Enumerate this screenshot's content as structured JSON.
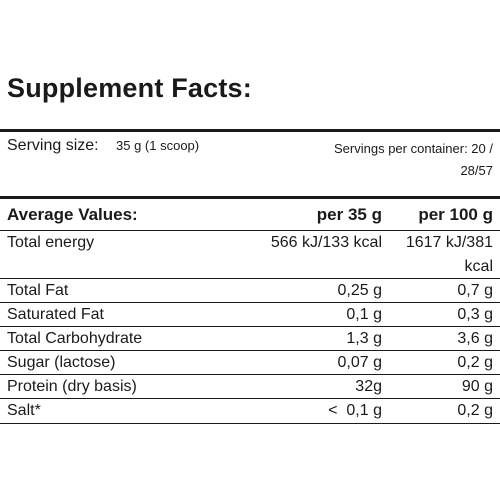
{
  "title": "Supplement Facts:",
  "serving": {
    "label": "Serving size:",
    "value": "35 g (1 scoop)",
    "per_container": "Servings per container: 20 / 28/57"
  },
  "table": {
    "headers": [
      "Average Values:",
      "per 35 g",
      "per 100 g"
    ],
    "rows": [
      {
        "name": "Total energy",
        "per_serving": "566 kJ/133 kcal",
        "per_100g": "1617 kJ/381 kcal"
      },
      {
        "name": "Total Fat",
        "per_serving": "0,25 g",
        "per_100g": "0,7 g"
      },
      {
        "name": "Saturated Fat",
        "per_serving": "0,1 g",
        "per_100g": "0,3 g"
      },
      {
        "name": "Total Carbohydrate",
        "per_serving": "1,3 g",
        "per_100g": "3,6 g"
      },
      {
        "name": "Sugar (lactose)",
        "per_serving": "0,07 g",
        "per_100g": "0,2 g"
      },
      {
        "name": "Protein (dry basis)",
        "per_serving": "32g",
        "per_100g": "90 g"
      },
      {
        "name": "Salt*",
        "per_serving": "<  0,1 g",
        "per_100g": "0,2 g"
      }
    ]
  }
}
